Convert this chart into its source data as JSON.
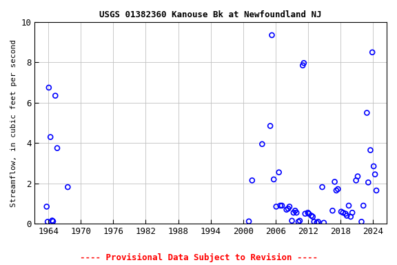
{
  "title": "USGS 01382360 Kanouse Bk at Newfoundland NJ",
  "ylabel": "Streamflow, in cubic feet per second",
  "footnote": "---- Provisional Data Subject to Revision ----",
  "footnote_color": "red",
  "xlim": [
    1961.5,
    2026.5
  ],
  "ylim": [
    0.0,
    10.0
  ],
  "xticks": [
    1964,
    1970,
    1976,
    1982,
    1988,
    1994,
    2000,
    2006,
    2012,
    2018,
    2024
  ],
  "yticks": [
    0.0,
    2.0,
    4.0,
    6.0,
    8.0,
    10.0
  ],
  "background_color": "#ffffff",
  "grid_color": "#c0c0c0",
  "marker_color": "blue",
  "markersize": 5,
  "markeredgewidth": 1.2,
  "title_fontsize": 9,
  "axis_label_fontsize": 8,
  "tick_fontsize": 9,
  "footnote_fontsize": 9,
  "x": [
    1963.7,
    1963.88,
    1964.1,
    1964.4,
    1964.72,
    1964.88,
    1965.3,
    1965.65,
    1967.6,
    2001.05,
    2001.65,
    2003.5,
    2005.0,
    2005.3,
    2005.65,
    2006.1,
    2006.6,
    2006.85,
    2007.15,
    2008.0,
    2008.3,
    2008.55,
    2009.0,
    2009.3,
    2009.6,
    2009.85,
    2010.2,
    2010.45,
    2011.0,
    2011.2,
    2011.45,
    2011.95,
    2012.12,
    2012.6,
    2012.85,
    2013.1,
    2013.6,
    2013.85,
    2014.6,
    2014.9,
    2016.5,
    2016.9,
    2017.2,
    2017.5,
    2018.1,
    2018.45,
    2018.9,
    2019.15,
    2019.5,
    2019.85,
    2020.15,
    2020.85,
    2021.15,
    2021.85,
    2022.2,
    2022.85,
    2023.1,
    2023.5,
    2023.85,
    2024.1,
    2024.35,
    2024.6
  ],
  "y": [
    0.85,
    0.1,
    6.75,
    4.3,
    0.16,
    0.12,
    6.35,
    3.75,
    1.82,
    0.12,
    2.15,
    3.95,
    4.85,
    9.35,
    2.2,
    0.85,
    2.55,
    0.9,
    0.9,
    0.7,
    0.75,
    0.85,
    0.15,
    0.55,
    0.65,
    0.55,
    0.1,
    0.15,
    7.85,
    7.97,
    0.5,
    0.55,
    0.5,
    0.4,
    0.35,
    0.1,
    0.05,
    0.1,
    1.82,
    0.05,
    0.65,
    2.08,
    1.65,
    1.72,
    0.6,
    0.55,
    0.5,
    0.4,
    0.9,
    0.35,
    0.55,
    2.15,
    2.35,
    0.1,
    0.9,
    5.5,
    2.05,
    3.65,
    8.5,
    2.85,
    2.45,
    1.65
  ]
}
